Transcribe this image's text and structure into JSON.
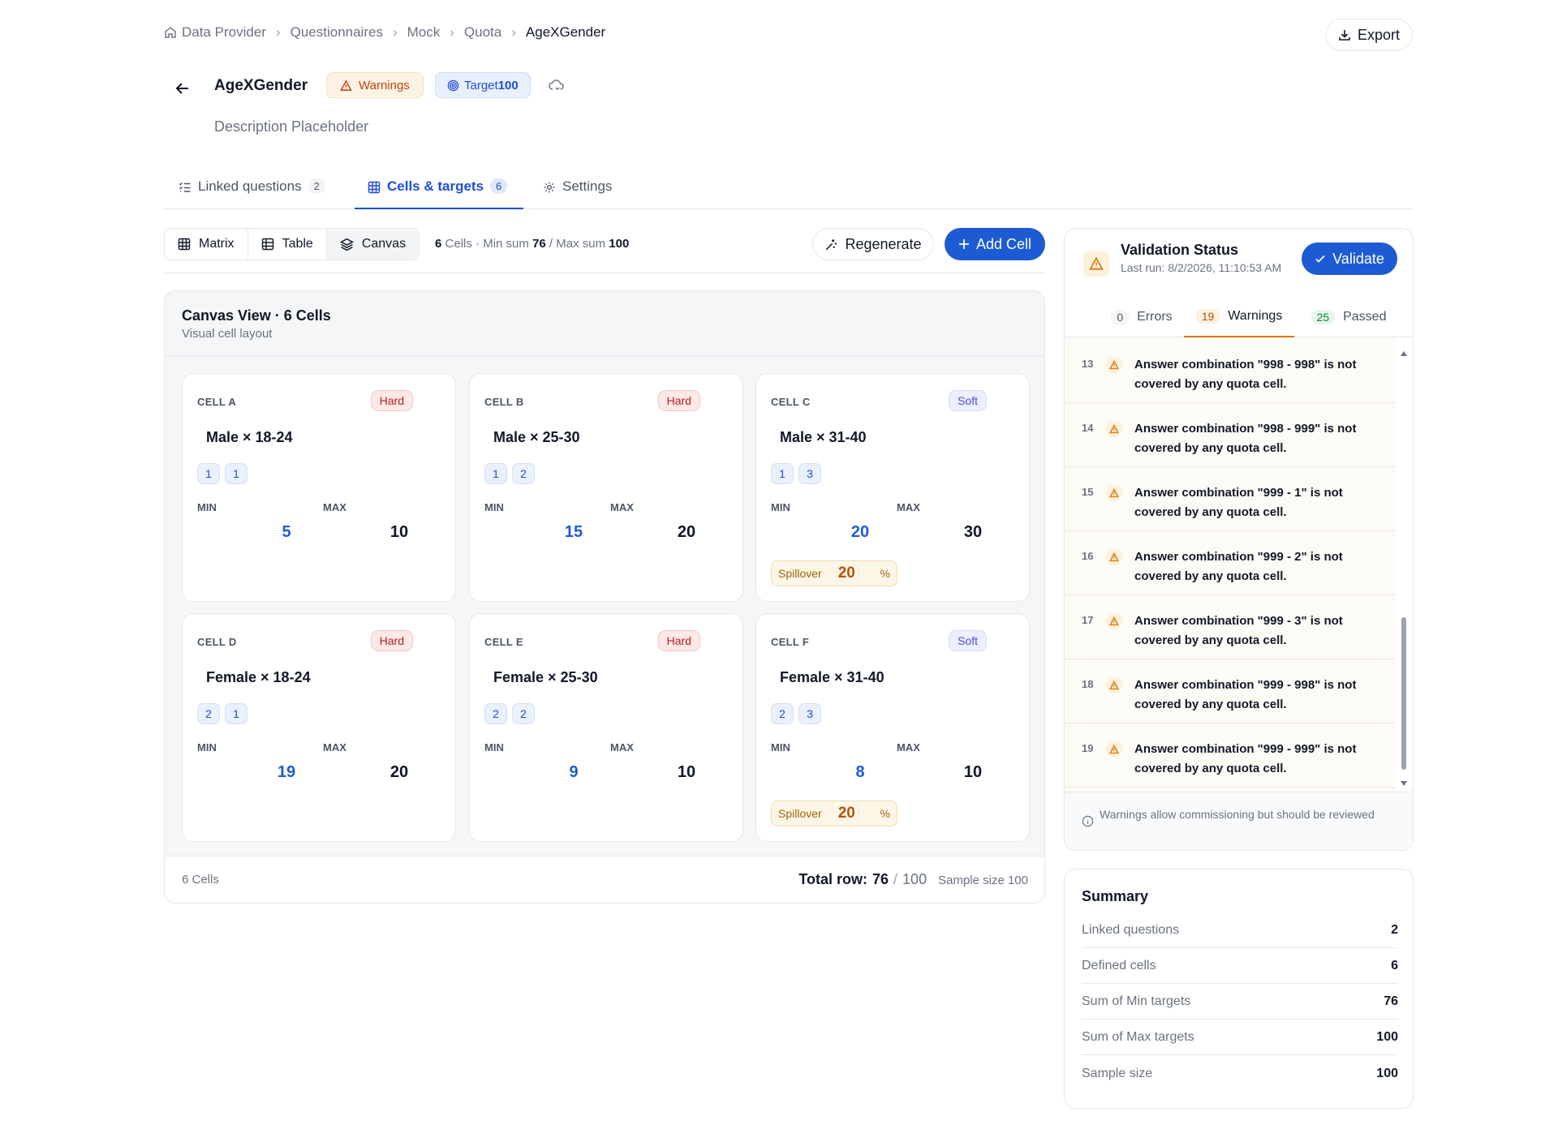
{
  "breadcrumb": [
    "Data Provider",
    "Questionnaires",
    "Mock",
    "Quota",
    "AgeXGender"
  ],
  "export_label": "Export",
  "header": {
    "title": "AgeXGender",
    "warnings_chip": "Warnings",
    "target_label": "Target",
    "target_value": "100",
    "description": "Description Placeholder"
  },
  "tabs": [
    {
      "label": "Linked questions",
      "count": "2"
    },
    {
      "label": "Cells & targets",
      "count": "6"
    },
    {
      "label": "Settings"
    }
  ],
  "views": [
    "Matrix",
    "Table",
    "Canvas"
  ],
  "toolbar": {
    "cells_count": "6",
    "cells_word": "Cells",
    "min_sum_label": "Min sum",
    "min_sum": "76",
    "max_sum_label": "Max sum",
    "max_sum": "100",
    "regenerate": "Regenerate",
    "add_cell": "Add Cell"
  },
  "canvas": {
    "title": "Canvas View · 6 Cells",
    "subtitle": "Visual cell layout",
    "footer_left": "6 Cells",
    "total_label": "Total row:",
    "total_value": "76",
    "total_max": "100",
    "sample_size": "Sample size 100",
    "min_label": "MIN",
    "max_label": "MAX",
    "spillover_label": "Spillover",
    "pct": "%",
    "cells": [
      {
        "id": "CELL A",
        "type": "Hard",
        "name": "Male × 18-24",
        "codes": [
          "1",
          "1"
        ],
        "min": "5",
        "max": "10",
        "spillover": null
      },
      {
        "id": "CELL B",
        "type": "Hard",
        "name": "Male × 25-30",
        "codes": [
          "1",
          "2"
        ],
        "min": "15",
        "max": "20",
        "spillover": null
      },
      {
        "id": "CELL C",
        "type": "Soft",
        "name": "Male × 31-40",
        "codes": [
          "1",
          "3"
        ],
        "min": "20",
        "max": "30",
        "spillover": "20"
      },
      {
        "id": "CELL D",
        "type": "Hard",
        "name": "Female × 18-24",
        "codes": [
          "2",
          "1"
        ],
        "min": "19",
        "max": "20",
        "spillover": null
      },
      {
        "id": "CELL E",
        "type": "Hard",
        "name": "Female × 25-30",
        "codes": [
          "2",
          "2"
        ],
        "min": "9",
        "max": "10",
        "spillover": null
      },
      {
        "id": "CELL F",
        "type": "Soft",
        "name": "Female × 31-40",
        "codes": [
          "2",
          "3"
        ],
        "min": "8",
        "max": "10",
        "spillover": "20"
      }
    ]
  },
  "validation": {
    "title": "Validation Status",
    "last_run": "Last run: 8/2/2026, 11:10:53 AM",
    "validate": "Validate",
    "tabs": [
      {
        "count": "0",
        "label": "Errors"
      },
      {
        "count": "19",
        "label": "Warnings"
      },
      {
        "count": "25",
        "label": "Passed"
      }
    ],
    "items": [
      {
        "n": "13",
        "text": "Answer combination \"998 - 998\" is not covered by any quota cell."
      },
      {
        "n": "14",
        "text": "Answer combination \"998 - 999\" is not covered by any quota cell."
      },
      {
        "n": "15",
        "text": "Answer combination \"999 - 1\" is not covered by any quota cell."
      },
      {
        "n": "16",
        "text": "Answer combination \"999 - 2\" is not covered by any quota cell."
      },
      {
        "n": "17",
        "text": "Answer combination \"999 - 3\" is not covered by any quota cell."
      },
      {
        "n": "18",
        "text": "Answer combination \"999 - 998\" is not covered by any quota cell."
      },
      {
        "n": "19",
        "text": "Answer combination \"999 - 999\" is not covered by any quota cell."
      }
    ],
    "footer": "Warnings allow commissioning but should be reviewed"
  },
  "summary": {
    "title": "Summary",
    "rows": [
      {
        "k": "Linked questions",
        "v": "2"
      },
      {
        "k": "Defined cells",
        "v": "6"
      },
      {
        "k": "Sum of Min targets",
        "v": "76"
      },
      {
        "k": "Sum of Max targets",
        "v": "100"
      },
      {
        "k": "Sample size",
        "v": "100"
      }
    ]
  },
  "colors": {
    "primary": "#1d5bd4",
    "warning": "#d97706",
    "hard": "#b91c1c",
    "soft": "#4f46e5",
    "passed": "#15803d"
  }
}
